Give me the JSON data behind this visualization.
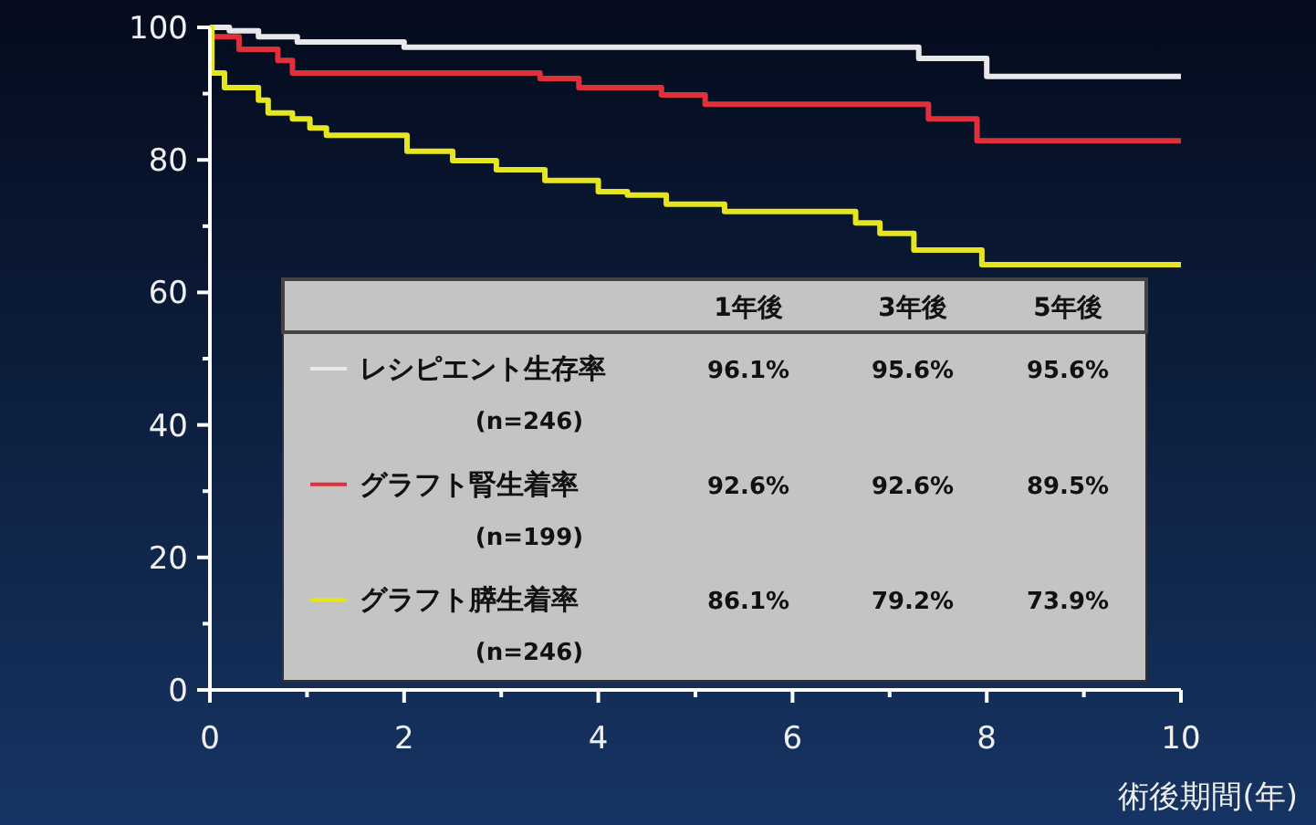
{
  "chart_data": {
    "type": "step",
    "xlabel": "術後期間(年)",
    "xlim": [
      0,
      10
    ],
    "ylim": [
      0,
      100
    ],
    "xticks": [
      0,
      {
        "value": 1,
        "label": null
      },
      2,
      {
        "value": 3,
        "label": null
      },
      4,
      {
        "value": 5,
        "label": null
      },
      6,
      {
        "value": 7,
        "label": null
      },
      8,
      {
        "value": 9,
        "label": null
      },
      10
    ],
    "yticks": [
      0,
      {
        "value": 10,
        "label": null
      },
      20,
      {
        "value": 30,
        "label": null
      },
      40,
      {
        "value": 50,
        "label": null
      },
      60,
      {
        "value": 70,
        "label": null
      },
      80,
      {
        "value": 90,
        "label": null
      },
      100
    ],
    "grid": false,
    "legend": "bottom",
    "series": [
      {
        "name": "レシピエント生存率",
        "color": "#e8e8e8",
        "x": [
          0,
          0.2,
          0.5,
          0.9,
          2.0,
          7.3,
          8.0,
          10
        ],
        "values": [
          100,
          99.5,
          98.6,
          97.8,
          97.0,
          95.3,
          92.6,
          92.6
        ]
      },
      {
        "name": "グラフト腎生着率",
        "color": "#e0303c",
        "x": [
          0,
          0.3,
          0.7,
          0.85,
          3.4,
          3.8,
          4.65,
          5.1,
          7.4,
          7.9,
          10
        ],
        "values": [
          98.6,
          96.7,
          95.0,
          93.1,
          92.3,
          90.9,
          89.8,
          88.4,
          86.2,
          82.9,
          82.9
        ]
      },
      {
        "name": "グラフト膵生着率",
        "color": "#e6e620",
        "x": [
          0,
          0.02,
          0.15,
          0.5,
          0.6,
          0.85,
          1.03,
          1.2,
          2.03,
          2.5,
          2.95,
          3.45,
          4.0,
          4.3,
          4.7,
          5.3,
          6.65,
          6.9,
          7.25,
          7.95,
          10
        ],
        "values": [
          100,
          93.1,
          90.9,
          89.0,
          87.1,
          86.2,
          84.8,
          83.7,
          81.3,
          79.9,
          78.5,
          76.9,
          75.2,
          74.7,
          73.3,
          72.2,
          70.5,
          68.9,
          66.4,
          64.2,
          64.2
        ]
      }
    ],
    "annotations": [
      "1年後",
      "3年後",
      "5年後",
      "(n=246)",
      "96.1%",
      "95.6%",
      "95.6%",
      "(n=199)",
      "92.6%",
      "92.6%",
      "89.5%",
      "(n=246)",
      "86.1%",
      "79.2%",
      "73.9%"
    ]
  }
}
